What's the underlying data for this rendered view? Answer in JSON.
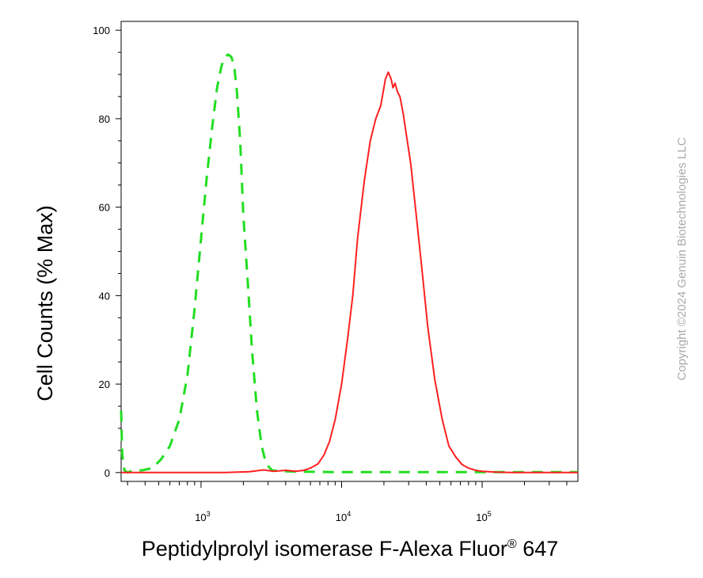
{
  "chart_data": {
    "type": "line",
    "xlabel": "Peptidylprolyl isomerase F-Alexa Fluor",
    "xlabel_superscript": "®",
    "xlabel_suffix": " 647",
    "ylabel": "Cell Counts (% Max)",
    "x_scale": "log",
    "xlim": [
      270,
      480000
    ],
    "ylim": [
      -2,
      102
    ],
    "y_ticks": [
      0,
      20,
      40,
      60,
      80,
      100
    ],
    "y_tick_labels": [
      "0",
      "20",
      "40",
      "60",
      "80",
      "100"
    ],
    "x_ticks": [
      1000,
      10000,
      100000
    ],
    "x_tick_labels": [
      {
        "base": "10",
        "exp": "3"
      },
      {
        "base": "10",
        "exp": "4"
      },
      {
        "base": "10",
        "exp": "5"
      }
    ],
    "grid": false,
    "series": [
      {
        "color": "#22dd22",
        "dash": "dashed",
        "x": [
          270,
          275,
          285,
          300,
          330,
          380,
          450,
          520,
          600,
          700,
          800,
          900,
          1000,
          1100,
          1200,
          1300,
          1400,
          1480,
          1560,
          1640,
          1720,
          1800,
          1900,
          2000,
          2150,
          2300,
          2500,
          2700,
          2900,
          3200,
          3800,
          5000,
          10000,
          30000,
          80000,
          150000,
          300000,
          480000
        ],
        "y": [
          14,
          4,
          0.5,
          0,
          0.5,
          0.5,
          1,
          3,
          6,
          12,
          22,
          37,
          53,
          67,
          78,
          87,
          92,
          94,
          94.5,
          94,
          92,
          86,
          75,
          58,
          43,
          28,
          14,
          6,
          2,
          0.5,
          0.3,
          0.2,
          0.1,
          0.1,
          0.1,
          0.1,
          0.1,
          0.1
        ]
      },
      {
        "color": "#ff2020",
        "dash": "solid",
        "x": [
          270,
          1500,
          2200,
          2800,
          3300,
          4000,
          4700,
          5400,
          6000,
          6800,
          7500,
          8200,
          9000,
          10000,
          11000,
          12000,
          13000,
          14500,
          16000,
          17500,
          19000,
          20500,
          21500,
          22500,
          23200,
          24000,
          25000,
          26000,
          27500,
          29000,
          31000,
          33500,
          37000,
          41000,
          46000,
          52000,
          58000,
          65000,
          72000,
          80000,
          90000,
          100000,
          112000,
          125000,
          140000,
          160000,
          200000,
          300000,
          480000
        ],
        "y": [
          0,
          0,
          0.2,
          0.6,
          0.3,
          0.5,
          0.3,
          0.5,
          1,
          2,
          4,
          7,
          12,
          20,
          30,
          40,
          53,
          66,
          75,
          80,
          83,
          89,
          90.5,
          89,
          87,
          88,
          86,
          85,
          81,
          76,
          70,
          60,
          47,
          33,
          21,
          12,
          6,
          3.5,
          1.8,
          1,
          0.5,
          0.3,
          0.2,
          0.1,
          0.05,
          0,
          0,
          0,
          0
        ]
      }
    ]
  },
  "copyright": "Copyright ©2024 Genuin Biotechnologies LLC"
}
